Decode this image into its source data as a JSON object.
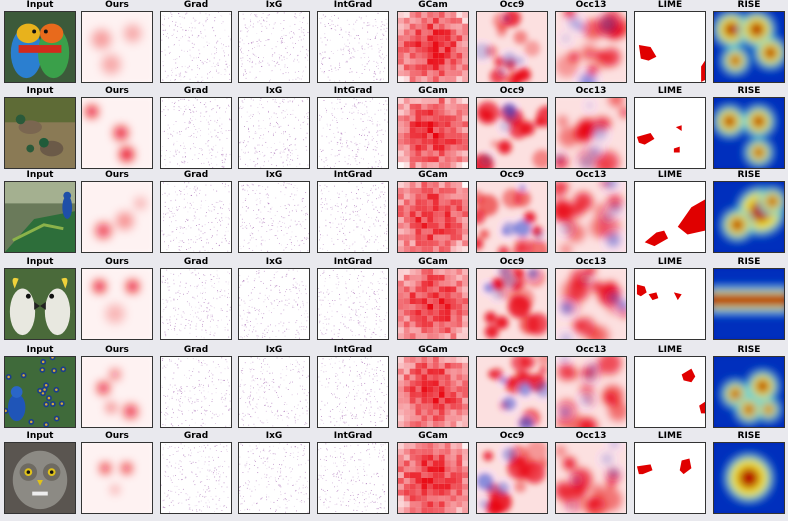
{
  "columns": [
    "Input",
    "Ours",
    "Grad",
    "IxG",
    "IntGrad",
    "GCam",
    "Occ9",
    "Occ13",
    "LIME",
    "RISE"
  ],
  "rows": [
    {
      "subject": "parrots"
    },
    {
      "subject": "ducks"
    },
    {
      "subject": "peacock-standing"
    },
    {
      "subject": "cockatoos"
    },
    {
      "subject": "peacock-feathers"
    },
    {
      "subject": "owl"
    }
  ],
  "colors": {
    "heat_red": "#e8000b",
    "heat_blue": "#3a4fd8",
    "pixel_purple": "#8a3a9b",
    "lime_red": "#e00000",
    "rise_low": "#0000a0",
    "rise_high": "#b40000"
  }
}
